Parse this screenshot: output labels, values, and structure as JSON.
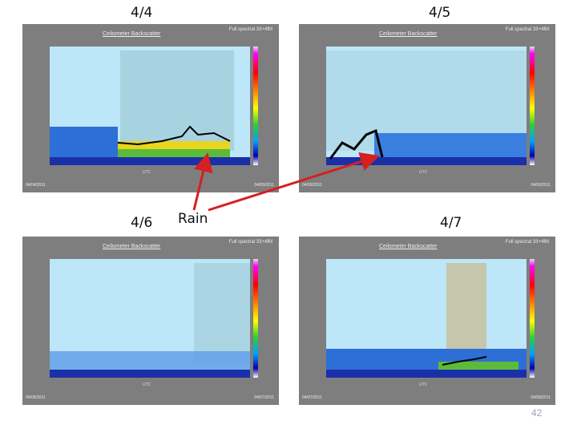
{
  "slide": {
    "rain_label": "Rain",
    "page_number": "42",
    "arrow_color": "#d42020",
    "sky_color": "#bde6f8"
  },
  "panels": [
    {
      "date_title": "4/4",
      "plot_title": "Ceilometer Backscatter",
      "code": "Full spectral 33+4fM",
      "date_left": "04/04/2011",
      "date_right": "04/05/2011",
      "xlabel": "UTC"
    },
    {
      "date_title": "4/5",
      "plot_title": "Ceilometer Backscatter",
      "code": "Full spectral 33+4fM",
      "date_left": "04/05/2011",
      "date_right": "04/06/2011",
      "xlabel": "UTC"
    },
    {
      "date_title": "4/6",
      "plot_title": "Ceilometer Backscatter",
      "code": "Full spectral 33+4fM",
      "date_left": "04/06/2011",
      "date_right": "04/07/2011",
      "xlabel": "UTC"
    },
    {
      "date_title": "4/7",
      "plot_title": "Ceilometer Backscatter",
      "code": "Full spectral 33+4fM",
      "date_left": "04/07/2011",
      "date_right": "04/08/2011",
      "xlabel": "UTC"
    }
  ],
  "chart_data": [
    {
      "type": "heatmap",
      "title": "4/4",
      "xlabel": "UTC"
    },
    {
      "type": "heatmap",
      "title": "4/5",
      "xlabel": "UTC"
    },
    {
      "type": "heatmap",
      "title": "4/6",
      "xlabel": "UTC"
    },
    {
      "type": "heatmap",
      "title": "4/7",
      "xlabel": "UTC"
    }
  ]
}
